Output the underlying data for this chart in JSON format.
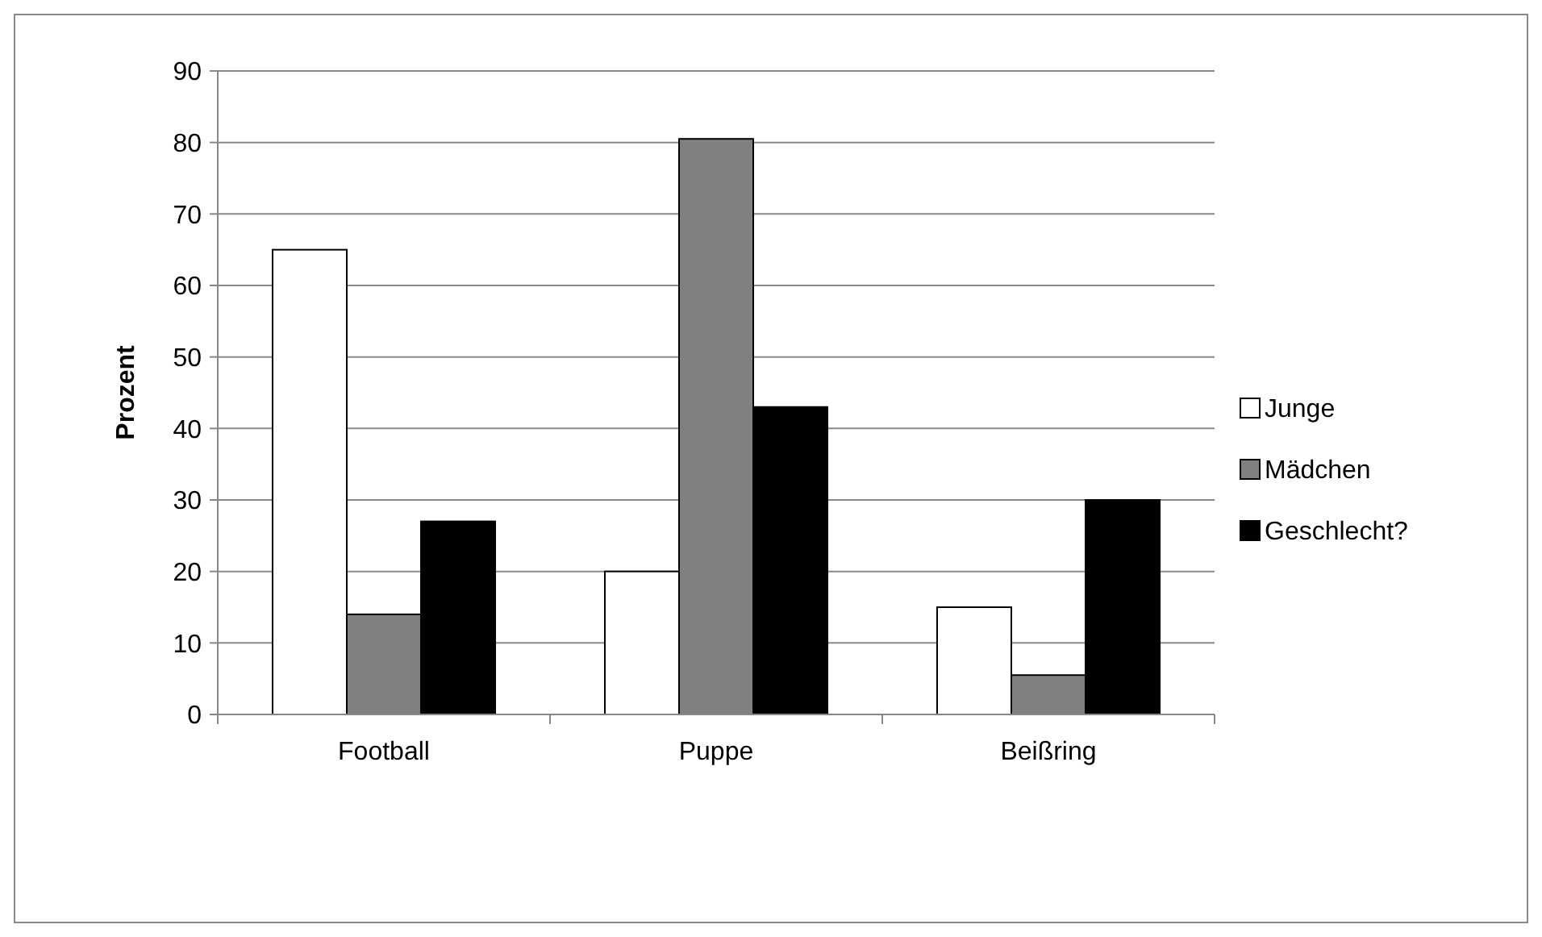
{
  "chart_data": {
    "type": "bar",
    "ylabel": "Prozent",
    "categories": [
      "Football",
      "Puppe",
      "Beißring"
    ],
    "series": [
      {
        "name": "Junge",
        "color": "#ffffff",
        "values": [
          65,
          20,
          15
        ]
      },
      {
        "name": "Mädchen",
        "color": "#808080",
        "values": [
          14,
          80.5,
          5.5
        ]
      },
      {
        "name": "Geschlecht?",
        "color": "#000000",
        "values": [
          27,
          43,
          30
        ]
      }
    ],
    "ylim": [
      0,
      90
    ],
    "yticks": [
      0,
      10,
      20,
      30,
      40,
      50,
      60,
      70,
      80,
      90
    ],
    "grid": "y",
    "legend": "right"
  }
}
